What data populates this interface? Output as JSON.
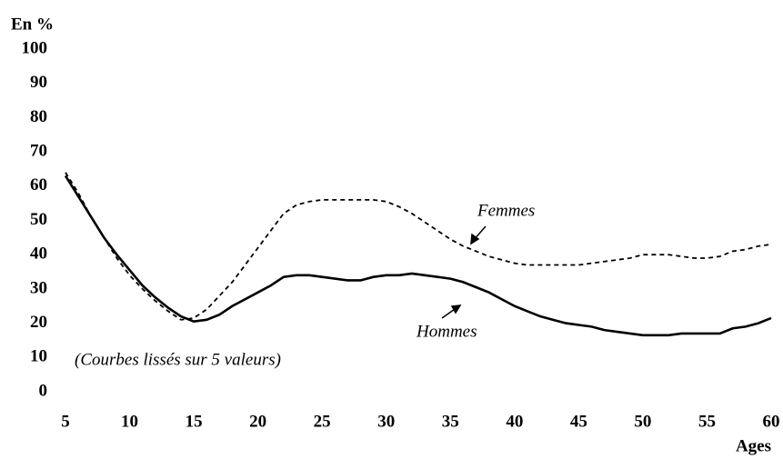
{
  "chart_data": {
    "type": "line",
    "y_label": "En %",
    "x_label": "Ages",
    "annotation": "(Courbes lissés sur 5 valeurs)",
    "x": [
      5,
      6,
      7,
      8,
      9,
      10,
      11,
      12,
      13,
      14,
      15,
      16,
      17,
      18,
      19,
      20,
      21,
      22,
      23,
      24,
      25,
      26,
      27,
      28,
      29,
      30,
      31,
      32,
      33,
      34,
      35,
      36,
      37,
      38,
      39,
      40,
      41,
      42,
      43,
      44,
      45,
      46,
      47,
      48,
      49,
      50,
      51,
      52,
      53,
      54,
      55,
      56,
      57,
      58,
      59,
      60
    ],
    "series": [
      {
        "name": "Femmes",
        "color": "#000000",
        "dash": true,
        "values": [
          64,
          58,
          51,
          45,
          39,
          34,
          30,
          26.5,
          23.5,
          21,
          21.5,
          24,
          28,
          32,
          37,
          42,
          47,
          52,
          54.5,
          55.5,
          56,
          56,
          56,
          56,
          56,
          55.5,
          54,
          52,
          49.5,
          47,
          44.5,
          42.5,
          41,
          39.5,
          38.5,
          37.5,
          37,
          37,
          37,
          37,
          37,
          37.5,
          38,
          38.5,
          39,
          40,
          40,
          40,
          39.5,
          39,
          39,
          39.5,
          41,
          41.5,
          42.5,
          43
        ]
      },
      {
        "name": "Hommes",
        "color": "#000000",
        "dash": false,
        "values": [
          63,
          57,
          51,
          45,
          40,
          35.5,
          31,
          27.5,
          24.5,
          22,
          20.5,
          21,
          22.5,
          25,
          27,
          29,
          31,
          33.5,
          34,
          34,
          33.5,
          33,
          32.5,
          32.5,
          33.5,
          34,
          34,
          34.5,
          34,
          33.5,
          33,
          32,
          30.5,
          29,
          27,
          25,
          23.5,
          22,
          21,
          20,
          19.5,
          19,
          18,
          17.5,
          17,
          16.5,
          16.5,
          16.5,
          17,
          17,
          17,
          17,
          18.5,
          19,
          20,
          21.5
        ]
      }
    ],
    "xlim": [
      5,
      60
    ],
    "xticks": [
      5,
      10,
      15,
      20,
      25,
      30,
      35,
      40,
      45,
      50,
      55,
      60
    ],
    "ylim": [
      0,
      100
    ],
    "yticks": [
      0,
      10,
      20,
      30,
      40,
      50,
      60,
      70,
      80,
      90,
      100
    ],
    "grid": false
  }
}
